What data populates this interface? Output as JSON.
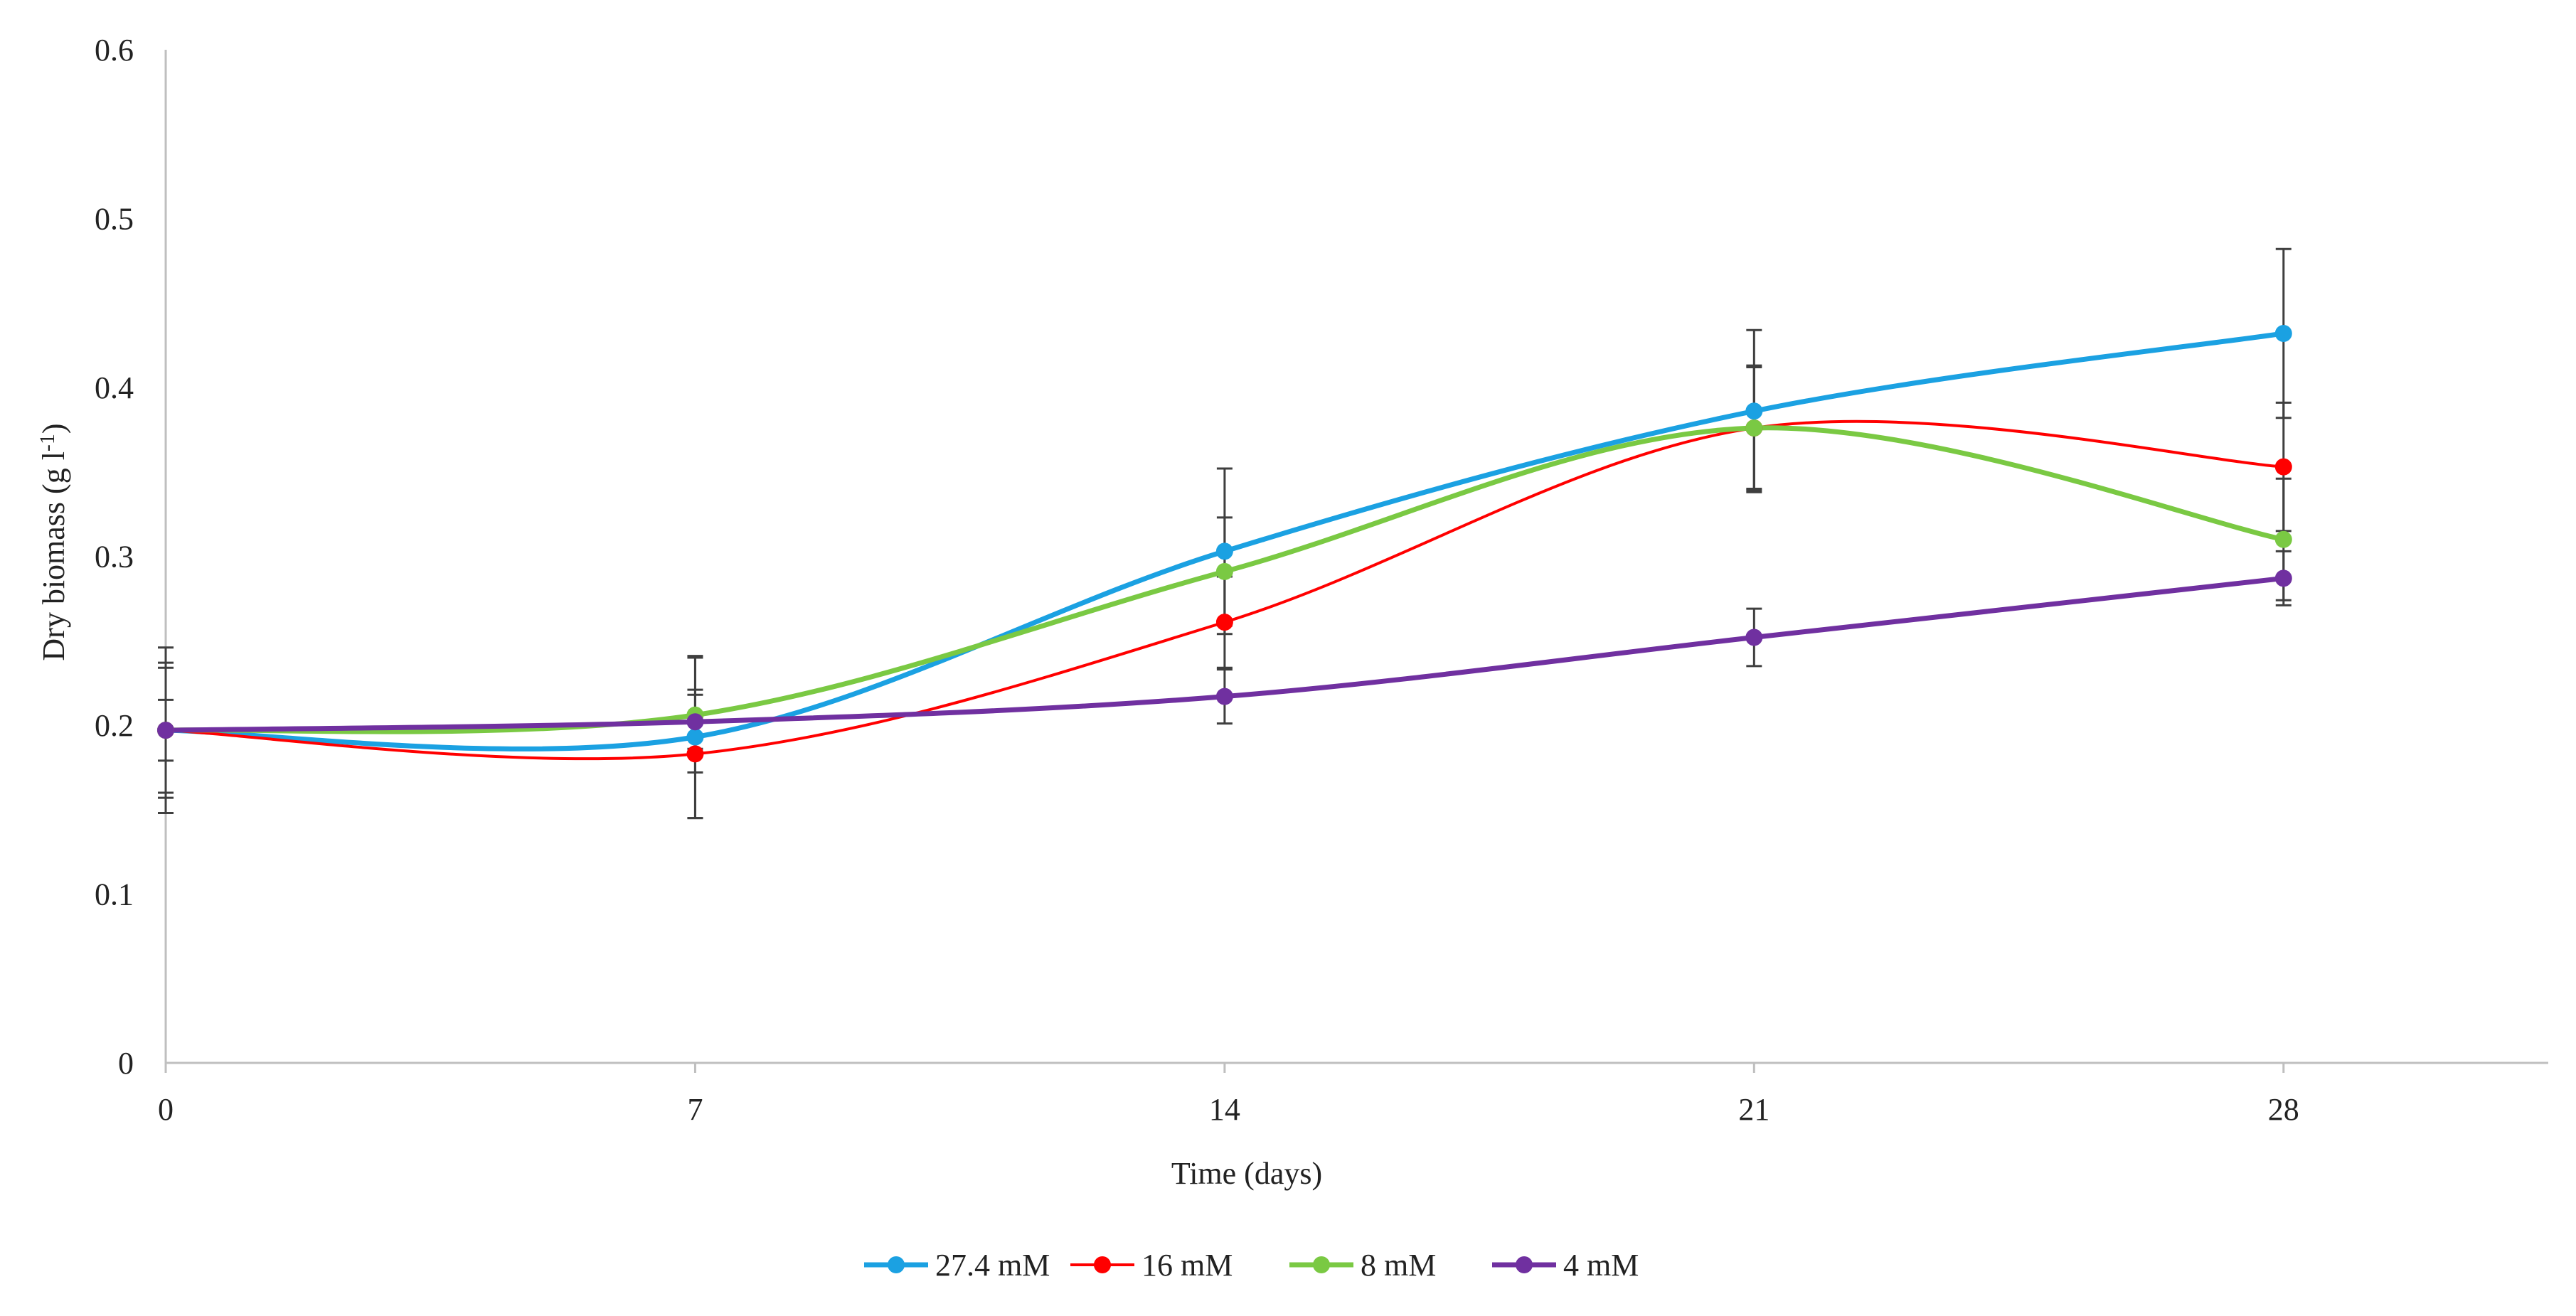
{
  "chart_data": {
    "type": "line",
    "smooth": true,
    "xlabel": "Time  (days)",
    "ylabel": "Dry biomass  (g l",
    "ylabel_superscript": "-1",
    "ylabel_close": ")",
    "x": [
      0,
      7,
      14,
      21,
      28
    ],
    "xlim": [
      0,
      31.5
    ],
    "ylim": [
      0,
      0.6
    ],
    "xticks": [
      0,
      7,
      14,
      21,
      28
    ],
    "xtick_labels": [
      "0",
      "7",
      "14",
      "21",
      "28"
    ],
    "yticks": [
      0,
      0.1,
      0.2,
      0.3,
      0.4,
      0.5,
      0.6
    ],
    "ytick_labels": [
      "0",
      "0.1",
      "0.2",
      "0.3",
      "0.4",
      "0.5",
      "0.6"
    ],
    "grid": false,
    "legend_position": "bottom-center",
    "error_bar_color": "#3f3f3f",
    "series": [
      {
        "name": "27.4 mM",
        "color": "#1ba1e2",
        "line_weight": "thick",
        "values": [
          0.197,
          0.193,
          0.303,
          0.386,
          0.432
        ],
        "errors": [
          0.049,
          0.048,
          0.049,
          0.048,
          0.05
        ]
      },
      {
        "name": "16 mM",
        "color": "#ff0000",
        "line_weight": "thin",
        "values": [
          0.197,
          0.183,
          0.261,
          0.376,
          0.353
        ],
        "errors": [
          0.04,
          0.038,
          0.027,
          0.037,
          0.038
        ]
      },
      {
        "name": "8 mM",
        "color": "#7ac943",
        "line_weight": "thick",
        "values": [
          0.197,
          0.206,
          0.291,
          0.376,
          0.31
        ],
        "errors": [
          0.037,
          0.034,
          0.032,
          0.036,
          0.036
        ]
      },
      {
        "name": "4 mM",
        "color": "#7030a0",
        "line_weight": "thick",
        "values": [
          0.197,
          0.202,
          0.217,
          0.252,
          0.287
        ],
        "errors": [
          0.018,
          0.016,
          0.016,
          0.017,
          0.016
        ]
      }
    ]
  }
}
